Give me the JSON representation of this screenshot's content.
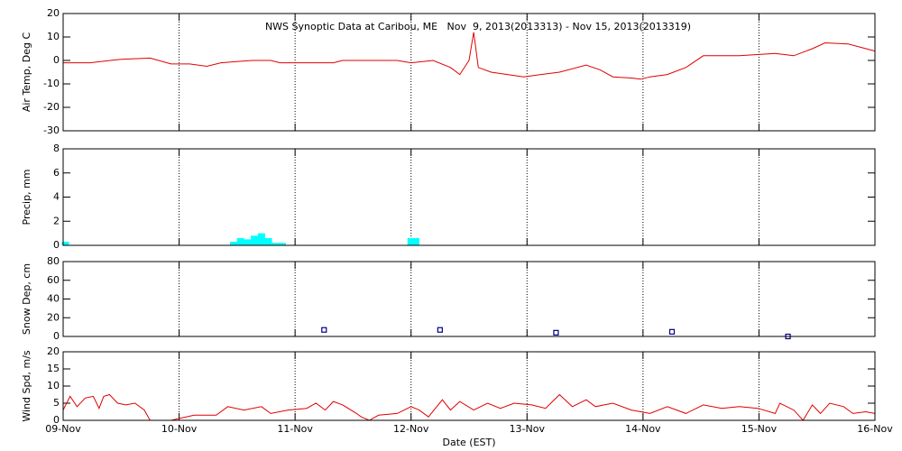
{
  "chart_data": [
    {
      "type": "line",
      "title": "NWS Synoptic Data at Caribou, ME   Nov  9, 2013(2013313) - Nov 15, 2013(2013319)",
      "ylabel": "Air Temp, Deg C",
      "color": "#e00000",
      "x": [
        0,
        0.23,
        0.5,
        0.75,
        0.93,
        1.09,
        1.24,
        1.36,
        1.63,
        1.79,
        1.87,
        2.33,
        2.41,
        2.88,
        3.0,
        3.19,
        3.34,
        3.42,
        3.5,
        3.54,
        3.58,
        3.69,
        3.97,
        4.12,
        4.28,
        4.51,
        4.63,
        4.74,
        4.9,
        4.98,
        5.06,
        5.21,
        5.37,
        5.52,
        5.83,
        6.14,
        6.3,
        6.46,
        6.57,
        6.77,
        7
      ],
      "values": [
        -1,
        -1,
        0.5,
        1,
        -1.5,
        -1.5,
        -2.5,
        -1,
        0,
        0,
        -1,
        -1,
        0,
        0,
        -1,
        0,
        -3,
        -6,
        0,
        12,
        -3,
        -5,
        -7,
        -6,
        -5,
        -2,
        -4,
        -7,
        -7.5,
        -8,
        -7,
        -6,
        -3,
        2,
        2,
        3,
        2,
        5,
        7.5,
        7,
        4
      ],
      "xlim": [
        0,
        7
      ],
      "ylim": [
        -30,
        20
      ],
      "yticks": [
        -30,
        -20,
        -10,
        0,
        10,
        20
      ],
      "grid": true
    },
    {
      "type": "bar",
      "ylabel": "Precip, mm",
      "color": "#00ffff",
      "x": [
        0.02,
        1.47,
        1.53,
        1.59,
        1.65,
        1.71,
        1.77,
        1.83,
        1.89,
        3.0,
        3.04
      ],
      "values": [
        0.3,
        0.3,
        0.6,
        0.5,
        0.8,
        1.0,
        0.6,
        0.2,
        0.2,
        0.6,
        0.6
      ],
      "xlim": [
        0,
        7
      ],
      "ylim": [
        0,
        8
      ],
      "yticks": [
        0,
        2,
        4,
        6,
        8
      ],
      "grid": true
    },
    {
      "type": "scatter",
      "ylabel": "Snow Dep, cm",
      "color": "#000080",
      "x": [
        2.25,
        3.25,
        4.25,
        5.25,
        6.25
      ],
      "values": [
        7,
        7,
        4,
        5,
        0
      ],
      "xlim": [
        0,
        7
      ],
      "ylim": [
        0,
        80
      ],
      "yticks": [
        0,
        20,
        40,
        60,
        80
      ],
      "grid": true
    },
    {
      "type": "line",
      "ylabel": "Wind Spd, m/s",
      "xlabel": "Date (EST)",
      "color": "#e00000",
      "x": [
        0,
        0.06,
        0.12,
        0.19,
        0.26,
        0.31,
        0.35,
        0.4,
        0.47,
        0.54,
        0.62,
        0.7,
        0.75,
        0.93,
        1.13,
        1.32,
        1.42,
        1.56,
        1.71,
        1.79,
        1.94,
        2.1,
        2.18,
        2.26,
        2.33,
        2.41,
        2.53,
        2.57,
        2.64,
        2.72,
        2.88,
        3.0,
        3.07,
        3.15,
        3.27,
        3.34,
        3.42,
        3.54,
        3.66,
        3.77,
        3.89,
        4.04,
        4.16,
        4.28,
        4.39,
        4.51,
        4.59,
        4.74,
        4.9,
        5.06,
        5.21,
        5.37,
        5.52,
        5.68,
        5.83,
        5.99,
        6.14,
        6.18,
        6.3,
        6.38,
        6.46,
        6.53,
        6.61,
        6.73,
        6.81,
        6.92,
        7
      ],
      "values": [
        3,
        7,
        4,
        6.5,
        7,
        3.5,
        7,
        7.5,
        5,
        4.5,
        5,
        3,
        0,
        0,
        1.5,
        1.5,
        4,
        3,
        4,
        2,
        3,
        3.5,
        5,
        3,
        5.5,
        4.5,
        2,
        1,
        0,
        1.5,
        2,
        4,
        3,
        1,
        6,
        3,
        5.5,
        3,
        5,
        3.5,
        5,
        4.5,
        3.5,
        7.5,
        4,
        6,
        4,
        5,
        3,
        2,
        4,
        2,
        4.5,
        3.5,
        4,
        3.5,
        2,
        5,
        3,
        0,
        4.5,
        2,
        5,
        4,
        2,
        2.5,
        2
      ],
      "xlim": [
        0,
        7
      ],
      "ylim": [
        0,
        20
      ],
      "yticks": [
        0,
        5,
        10,
        15,
        20
      ],
      "grid": true,
      "xticks": [
        {
          "value": 0,
          "label": "09-Nov"
        },
        {
          "value": 1,
          "label": "10-Nov"
        },
        {
          "value": 2,
          "label": "11-Nov"
        },
        {
          "value": 3,
          "label": "12-Nov"
        },
        {
          "value": 4,
          "label": "13-Nov"
        },
        {
          "value": 5,
          "label": "14-Nov"
        },
        {
          "value": 6,
          "label": "15-Nov"
        },
        {
          "value": 7,
          "label": "16-Nov"
        }
      ]
    }
  ]
}
